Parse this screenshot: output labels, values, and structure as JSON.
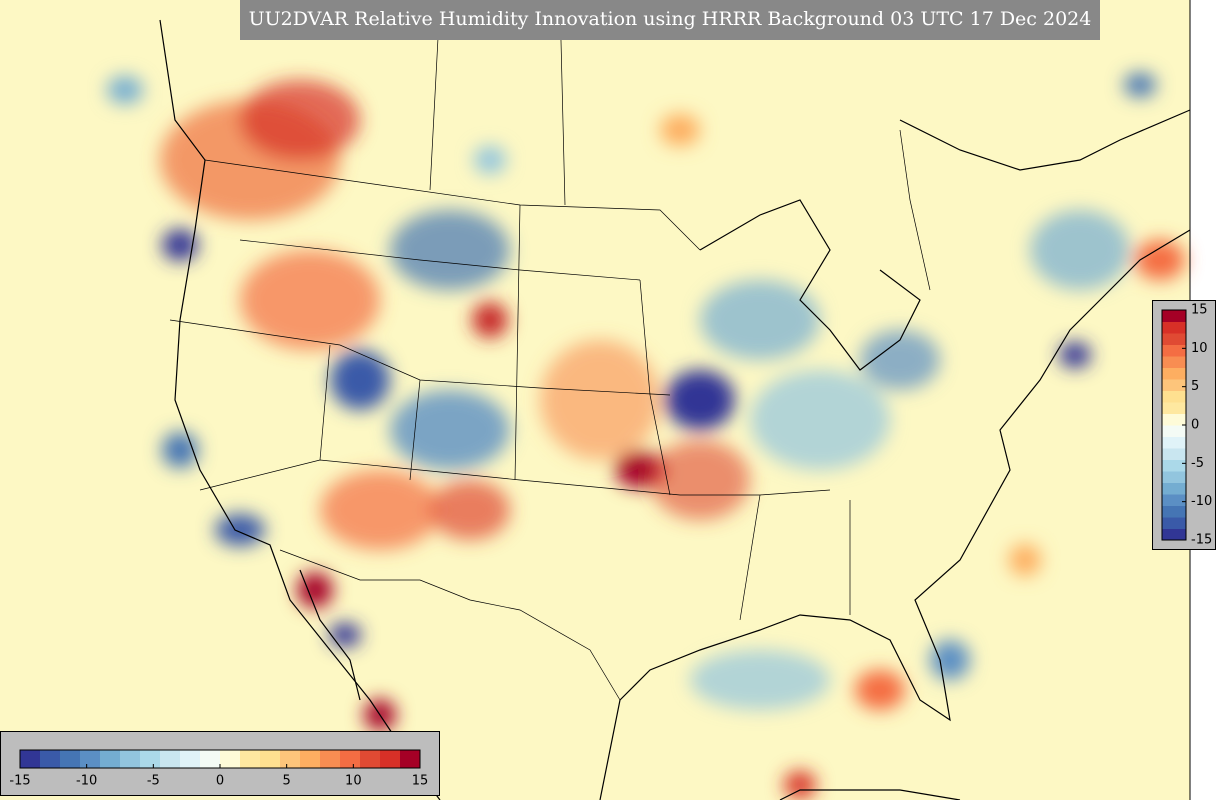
{
  "title": "UU2DVAR Relative Humidity Innovation using HRRR Background 03 UTC 17 Dec 2024",
  "colorbars": [
    {
      "orientation": "horizontal",
      "lim": [
        -15,
        15
      ],
      "ticks": [
        -15,
        -10,
        -5,
        0,
        5,
        10,
        15
      ]
    },
    {
      "orientation": "vertical",
      "lim": [
        -15,
        15
      ],
      "ticks": [
        -15,
        -10,
        -5,
        0,
        5,
        10,
        15
      ]
    }
  ],
  "colors": [
    "#313695",
    "#3a5aa8",
    "#4575b4",
    "#5b8fc4",
    "#74add1",
    "#92c5de",
    "#abd9e9",
    "#c9e6f0",
    "#e0f3f8",
    "#f4fbf5",
    "#fefbd8",
    "#fee8a0",
    "#fee090",
    "#fdc57b",
    "#fdae61",
    "#f88d52",
    "#f46d43",
    "#e04a33",
    "#d73027",
    "#a50026"
  ]
}
